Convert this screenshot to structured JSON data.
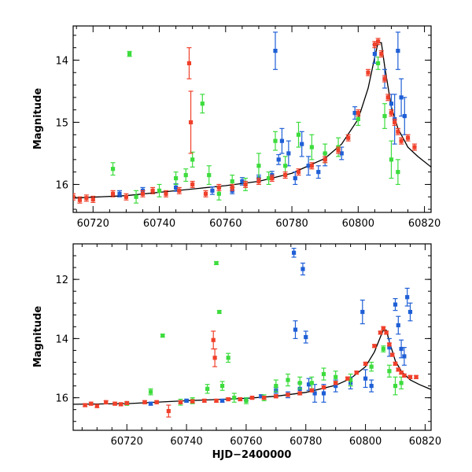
{
  "chart_data": [
    {
      "type": "scatter",
      "title": "",
      "xlabel": "",
      "ylabel": "Magnitude",
      "xlim": [
        60714,
        60822
      ],
      "ylim": [
        16.45,
        13.45
      ],
      "y_inverted": true,
      "xticks": [
        "60720",
        "60740",
        "60760",
        "60780",
        "60800",
        "60820"
      ],
      "yticks": [
        "14",
        "15",
        "16"
      ],
      "series": [
        {
          "color": "#1f5fd6",
          "points": [
            [
              60728,
              16.15
            ],
            [
              60735,
              16.1
            ],
            [
              60745,
              16.05
            ],
            [
              60756,
              16.1
            ],
            [
              60762,
              16.1
            ],
            [
              60765,
              15.95
            ],
            [
              60770,
              15.9
            ],
            [
              60774,
              15.85
            ],
            [
              60775,
              13.85
            ],
            [
              60776,
              15.6
            ],
            [
              60777,
              15.3
            ],
            [
              60779,
              15.5
            ],
            [
              60781,
              15.9
            ],
            [
              60783,
              15.35
            ],
            [
              60785,
              15.7
            ],
            [
              60788,
              15.8
            ],
            [
              60790,
              15.6
            ],
            [
              60795,
              15.5
            ],
            [
              60799,
              14.85
            ],
            [
              60805,
              13.9
            ],
            [
              60808,
              14.3
            ],
            [
              60810,
              14.7
            ],
            [
              60811,
              14.95
            ],
            [
              60812,
              13.85
            ],
            [
              60813,
              14.6
            ],
            [
              60814,
              14.9
            ]
          ],
          "yerr": [
            0.05,
            0.05,
            0.06,
            0.06,
            0.05,
            0.06,
            0.05,
            0.06,
            0.3,
            0.08,
            0.2,
            0.2,
            0.1,
            0.2,
            0.15,
            0.1,
            0.1,
            0.1,
            0.1,
            0.15,
            0.15,
            0.15,
            0.4,
            0.3,
            0.3,
            0.3
          ]
        },
        {
          "color": "#3ddc3d",
          "points": [
            [
              60726,
              15.75
            ],
            [
              60731,
              13.9
            ],
            [
              60733,
              16.2
            ],
            [
              60740,
              16.1
            ],
            [
              60745,
              15.9
            ],
            [
              60748,
              15.85
            ],
            [
              60750,
              15.6
            ],
            [
              60753,
              14.7
            ],
            [
              60755,
              15.85
            ],
            [
              60758,
              16.15
            ],
            [
              60762,
              15.95
            ],
            [
              60766,
              16.0
            ],
            [
              60770,
              15.7
            ],
            [
              60773,
              15.9
            ],
            [
              60775,
              15.3
            ],
            [
              60778,
              15.7
            ],
            [
              60782,
              15.2
            ],
            [
              60786,
              15.4
            ],
            [
              60790,
              15.5
            ],
            [
              60794,
              15.4
            ],
            [
              60800,
              14.95
            ],
            [
              60806,
              14.05
            ],
            [
              60808,
              14.9
            ],
            [
              60810,
              15.6
            ],
            [
              60812,
              15.8
            ]
          ],
          "yerr": [
            0.1,
            0.04,
            0.1,
            0.1,
            0.1,
            0.1,
            0.12,
            0.15,
            0.15,
            0.1,
            0.1,
            0.1,
            0.2,
            0.1,
            0.15,
            0.15,
            0.2,
            0.2,
            0.15,
            0.15,
            0.1,
            0.1,
            0.2,
            0.3,
            0.2
          ]
        },
        {
          "color": "#f0402a",
          "points": [
            [
              60714,
              16.2
            ],
            [
              60716,
              16.25
            ],
            [
              60718,
              16.22
            ],
            [
              60720,
              16.24
            ],
            [
              60726,
              16.15
            ],
            [
              60730,
              16.2
            ],
            [
              60735,
              16.15
            ],
            [
              60738,
              16.1
            ],
            [
              60742,
              16.15
            ],
            [
              60746,
              16.1
            ],
            [
              60749,
              14.05
            ],
            [
              60749.5,
              15.0
            ],
            [
              60750,
              16.0
            ],
            [
              60754,
              16.15
            ],
            [
              60758,
              16.05
            ],
            [
              60762,
              16.05
            ],
            [
              60766,
              16.0
            ],
            [
              60770,
              15.95
            ],
            [
              60774,
              15.9
            ],
            [
              60778,
              15.85
            ],
            [
              60782,
              15.8
            ],
            [
              60786,
              15.7
            ],
            [
              60790,
              15.6
            ],
            [
              60794,
              15.45
            ],
            [
              60797,
              15.25
            ],
            [
              60800,
              14.85
            ],
            [
              60803,
              14.2
            ],
            [
              60805,
              13.75
            ],
            [
              60806,
              13.7
            ],
            [
              60807,
              13.9
            ],
            [
              60808,
              14.3
            ],
            [
              60809,
              14.6
            ],
            [
              60810,
              14.85
            ],
            [
              60811,
              15.0
            ],
            [
              60812,
              15.15
            ],
            [
              60813,
              15.3
            ],
            [
              60815,
              15.25
            ],
            [
              60817,
              15.4
            ]
          ],
          "yerr": [
            0.05,
            0.05,
            0.05,
            0.05,
            0.05,
            0.05,
            0.05,
            0.05,
            0.05,
            0.05,
            0.25,
            0.5,
            0.05,
            0.05,
            0.05,
            0.05,
            0.05,
            0.05,
            0.05,
            0.05,
            0.05,
            0.05,
            0.05,
            0.05,
            0.05,
            0.05,
            0.05,
            0.05,
            0.05,
            0.05,
            0.05,
            0.05,
            0.05,
            0.05,
            0.05,
            0.05,
            0.05,
            0.05
          ]
        }
      ],
      "model_curve": [
        [
          60714,
          16.22
        ],
        [
          60730,
          16.18
        ],
        [
          60745,
          16.1
        ],
        [
          60760,
          16.02
        ],
        [
          60770,
          15.95
        ],
        [
          60780,
          15.82
        ],
        [
          60790,
          15.58
        ],
        [
          60795,
          15.35
        ],
        [
          60800,
          14.95
        ],
        [
          60803,
          14.45
        ],
        [
          60805,
          13.95
        ],
        [
          60806,
          13.72
        ],
        [
          60807,
          13.72
        ],
        [
          60808,
          14.1
        ],
        [
          60810,
          14.75
        ],
        [
          60812,
          15.1
        ],
        [
          60815,
          15.4
        ],
        [
          60818,
          15.55
        ],
        [
          60822,
          15.72
        ]
      ]
    },
    {
      "type": "scatter",
      "title": "",
      "xlabel": "HJD−2400000",
      "ylabel": "Magnitude",
      "xlim": [
        60702,
        60822
      ],
      "ylim": [
        17.1,
        10.8
      ],
      "y_inverted": true,
      "xticks": [
        "60720",
        "60740",
        "60760",
        "60780",
        "60800",
        "60820"
      ],
      "yticks": [
        "12",
        "14",
        "16"
      ],
      "series": [
        {
          "color": "#1f5fd6",
          "points": [
            [
              60728,
              16.2
            ],
            [
              60740,
              16.1
            ],
            [
              60752,
              16.1
            ],
            [
              60760,
              16.05
            ],
            [
              60765,
              15.95
            ],
            [
              60770,
              15.75
            ],
            [
              60774,
              15.9
            ],
            [
              60776,
              11.1
            ],
            [
              60776.5,
              13.7
            ],
            [
              60778,
              15.7
            ],
            [
              60779,
              11.65
            ],
            [
              60780,
              13.95
            ],
            [
              60781,
              15.55
            ],
            [
              60783,
              15.85
            ],
            [
              60786,
              15.85
            ],
            [
              60790,
              15.6
            ],
            [
              60795,
              15.5
            ],
            [
              60799,
              13.1
            ],
            [
              60800,
              15.35
            ],
            [
              60802,
              15.6
            ],
            [
              60808,
              14.3
            ],
            [
              60810,
              12.85
            ],
            [
              60811,
              13.55
            ],
            [
              60812,
              14.35
            ],
            [
              60813,
              14.6
            ],
            [
              60814,
              12.6
            ],
            [
              60815,
              13.1
            ]
          ],
          "yerr": [
            0.05,
            0.05,
            0.05,
            0.05,
            0.05,
            0.1,
            0.1,
            0.15,
            0.3,
            0.2,
            0.2,
            0.2,
            0.2,
            0.3,
            0.3,
            0.2,
            0.2,
            0.4,
            0.3,
            0.2,
            0.3,
            0.2,
            0.3,
            0.3,
            0.3,
            0.3,
            0.3
          ]
        },
        {
          "color": "#3ddc3d",
          "points": [
            [
              60720,
              16.2
            ],
            [
              60728,
              15.8
            ],
            [
              60732,
              13.9
            ],
            [
              60738,
              16.15
            ],
            [
              60742,
              16.1
            ],
            [
              60747,
              15.7
            ],
            [
              60750,
              11.45
            ],
            [
              60751,
              13.1
            ],
            [
              60752,
              15.6
            ],
            [
              60754,
              14.65
            ],
            [
              60756,
              16.0
            ],
            [
              60760,
              16.1
            ],
            [
              60766,
              16.0
            ],
            [
              60770,
              15.6
            ],
            [
              60774,
              15.4
            ],
            [
              60778,
              15.5
            ],
            [
              60782,
              15.5
            ],
            [
              60786,
              15.2
            ],
            [
              60790,
              15.3
            ],
            [
              60795,
              15.4
            ],
            [
              60802,
              14.95
            ],
            [
              60806,
              14.35
            ],
            [
              60808,
              15.1
            ],
            [
              60810,
              15.6
            ],
            [
              60812,
              15.5
            ]
          ],
          "yerr": [
            0.05,
            0.1,
            0.05,
            0.1,
            0.1,
            0.15,
            0.05,
            0.05,
            0.15,
            0.15,
            0.15,
            0.1,
            0.1,
            0.2,
            0.2,
            0.2,
            0.2,
            0.2,
            0.2,
            0.2,
            0.15,
            0.1,
            0.2,
            0.3,
            0.2
          ]
        },
        {
          "color": "#f0402a",
          "points": [
            [
              60706,
              16.25
            ],
            [
              60708,
              16.2
            ],
            [
              60710,
              16.28
            ],
            [
              60713,
              16.15
            ],
            [
              60716,
              16.2
            ],
            [
              60718,
              16.22
            ],
            [
              60720,
              16.18
            ],
            [
              60726,
              16.15
            ],
            [
              60730,
              16.15
            ],
            [
              60734,
              16.45
            ],
            [
              60738,
              16.15
            ],
            [
              60742,
              16.12
            ],
            [
              60746,
              16.1
            ],
            [
              60749,
              14.05
            ],
            [
              60749.5,
              14.65
            ],
            [
              60750,
              16.1
            ],
            [
              60754,
              16.05
            ],
            [
              60758,
              16.05
            ],
            [
              60762,
              16.0
            ],
            [
              60766,
              16.0
            ],
            [
              60770,
              15.95
            ],
            [
              60774,
              15.9
            ],
            [
              60778,
              15.85
            ],
            [
              60782,
              15.75
            ],
            [
              60786,
              15.65
            ],
            [
              60790,
              15.5
            ],
            [
              60794,
              15.35
            ],
            [
              60797,
              15.15
            ],
            [
              60800,
              14.85
            ],
            [
              60803,
              14.25
            ],
            [
              60805,
              13.8
            ],
            [
              60806,
              13.65
            ],
            [
              60807,
              13.8
            ],
            [
              60808,
              14.2
            ],
            [
              60809,
              14.55
            ],
            [
              60810,
              14.85
            ],
            [
              60811,
              15.05
            ],
            [
              60812,
              15.15
            ],
            [
              60813,
              15.25
            ],
            [
              60815,
              15.3
            ],
            [
              60817,
              15.3
            ]
          ],
          "yerr": [
            0.05,
            0.05,
            0.05,
            0.05,
            0.05,
            0.05,
            0.05,
            0.05,
            0.05,
            0.2,
            0.05,
            0.05,
            0.05,
            0.3,
            0.3,
            0.05,
            0.05,
            0.05,
            0.05,
            0.05,
            0.05,
            0.05,
            0.05,
            0.05,
            0.05,
            0.05,
            0.05,
            0.05,
            0.05,
            0.05,
            0.05,
            0.05,
            0.05,
            0.05,
            0.05,
            0.05,
            0.05,
            0.05,
            0.05,
            0.05,
            0.05
          ]
        }
      ],
      "model_curve": [
        [
          60702,
          16.22
        ],
        [
          60720,
          16.2
        ],
        [
          60740,
          16.1
        ],
        [
          60760,
          16.02
        ],
        [
          60770,
          15.95
        ],
        [
          60780,
          15.82
        ],
        [
          60790,
          15.58
        ],
        [
          60795,
          15.35
        ],
        [
          60800,
          14.95
        ],
        [
          60803,
          14.45
        ],
        [
          60805,
          13.95
        ],
        [
          60806,
          13.72
        ],
        [
          60807,
          13.72
        ],
        [
          60808,
          14.1
        ],
        [
          60810,
          14.75
        ],
        [
          60812,
          15.1
        ],
        [
          60815,
          15.4
        ],
        [
          60818,
          15.55
        ],
        [
          60822,
          15.72
        ]
      ]
    }
  ]
}
